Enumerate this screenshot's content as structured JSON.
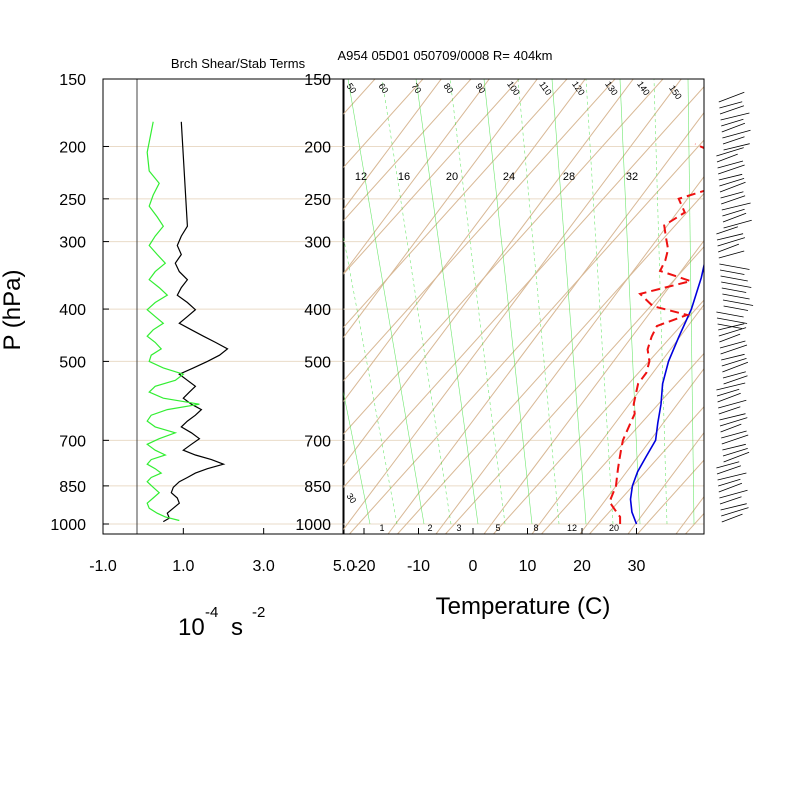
{
  "title": "A954 05D01 050709/0008 R= 404km",
  "colors": {
    "grid": "#d8b895",
    "pressure_line": "#eadbc8",
    "mixing_ratio": "#33dd33",
    "temperature": "#0000dd",
    "dewpoint": "#ee1111",
    "shear_term": "#000000",
    "stability_term": "#33ee33"
  },
  "chart_data": [
    {
      "type": "line",
      "title": "Brch Shear/Stab Terms",
      "xlabel": "10-4 s -2",
      "xlabel_base": "10",
      "xlabel_exp1": "-4",
      "xlabel_unit": "s",
      "xlabel_exp2": "-2",
      "ylabel": "P (hPa)",
      "y_scale": "log",
      "ylim": [
        1000,
        150
      ],
      "xlim": [
        -1.0,
        5.0
      ],
      "x_tick_labels": [
        "-1.0",
        "1.0",
        "3.0",
        "5.0"
      ],
      "x_tick_values": [
        -1.0,
        1.0,
        3.0,
        5.0
      ],
      "y_ticks": [
        1000,
        850,
        700,
        500,
        400,
        300,
        250,
        200,
        150
      ],
      "series": [
        {
          "key": "shear",
          "x": [
            0.5,
            0.65,
            0.6,
            0.75,
            0.9,
            0.85,
            0.7,
            0.75,
            0.9,
            1.1,
            1.3,
            1.6,
            2.0,
            1.7,
            1.3,
            1.0,
            1.2,
            1.4,
            1.2,
            0.95,
            1.1,
            1.3,
            1.45,
            1.2,
            1.0,
            1.15,
            1.3,
            1.1,
            0.9,
            1.25,
            1.6,
            1.9,
            2.1,
            1.8,
            1.5,
            1.2,
            0.9,
            1.1,
            1.3,
            1.1,
            0.85,
            0.95,
            1.1,
            0.9,
            0.8,
            0.95,
            0.85,
            0.95,
            1.1,
            0.95
          ],
          "y": [
            990,
            975,
            955,
            935,
            915,
            895,
            875,
            855,
            835,
            820,
            805,
            790,
            775,
            760,
            745,
            730,
            712,
            695,
            678,
            661,
            645,
            629,
            614,
            600,
            585,
            570,
            556,
            542,
            528,
            514,
            500,
            487,
            474,
            461,
            449,
            437,
            425,
            413,
            401,
            389,
            377,
            365,
            353,
            341,
            329,
            317,
            305,
            293,
            281,
            180
          ]
        },
        {
          "key": "stability",
          "x": [
            0.9,
            0.55,
            0.35,
            0.15,
            0.1,
            0.25,
            0.4,
            0.25,
            0.1,
            0.2,
            0.45,
            0.3,
            0.1,
            0.2,
            0.55,
            0.3,
            0.1,
            0.4,
            0.8,
            0.3,
            0.1,
            0.2,
            0.6,
            1.4,
            0.5,
            0.15,
            0.3,
            0.8,
            1.0,
            0.5,
            0.15,
            0.2,
            0.45,
            0.3,
            0.1,
            0.25,
            0.5,
            0.3,
            0.1,
            0.3,
            0.6,
            0.4,
            0.15,
            0.3,
            0.55,
            0.35,
            0.15,
            0.3,
            0.5,
            0.35,
            0.15,
            0.25,
            0.4,
            0.15,
            0.1,
            0.25
          ],
          "y": [
            985,
            970,
            955,
            935,
            915,
            895,
            875,
            855,
            835,
            820,
            805,
            790,
            775,
            760,
            745,
            730,
            712,
            695,
            678,
            661,
            645,
            629,
            614,
            600,
            585,
            570,
            556,
            542,
            528,
            514,
            500,
            487,
            474,
            461,
            449,
            437,
            425,
            413,
            401,
            389,
            377,
            365,
            353,
            341,
            329,
            317,
            305,
            293,
            281,
            270,
            258,
            246,
            234,
            222,
            205,
            180
          ]
        }
      ]
    },
    {
      "type": "line",
      "title": "",
      "xlabel": "Temperature (C)",
      "ylabel": "",
      "y_scale": "log",
      "ylim": [
        1000,
        150
      ],
      "xlim": [
        -25,
        44
      ],
      "x_ticks": [
        -20,
        -10,
        0,
        10,
        20,
        30
      ],
      "y_ticks": [
        1000,
        850,
        700,
        500,
        400,
        300,
        250,
        200,
        150
      ],
      "mixing_ratio_labels_top": [
        12,
        16,
        20,
        24,
        28,
        32
      ],
      "mixing_ratio_labels_bottom": [
        1,
        2,
        3,
        5,
        8,
        12,
        20
      ],
      "dry_adiabat_labels": [
        30,
        50,
        60,
        70,
        80,
        90,
        100,
        110,
        120,
        130,
        140,
        150
      ],
      "series": [
        {
          "key": "temperature",
          "p": [
            1000,
            950,
            900,
            850,
            800,
            750,
            700,
            650,
            600,
            550,
            500,
            450,
            400,
            350,
            300,
            250,
            200,
            175
          ],
          "t": [
            30,
            27.5,
            25.5,
            24,
            23,
            22.5,
            22,
            20,
            18,
            15.5,
            13.5,
            12,
            10.5,
            8,
            4.5,
            0.5,
            -3,
            -4.5
          ]
        },
        {
          "key": "dewpoint",
          "p": [
            1000,
            970,
            940,
            910,
            880,
            850,
            820,
            790,
            760,
            730,
            700,
            675,
            650,
            625,
            600,
            575,
            550,
            525,
            500,
            475,
            450,
            430,
            410,
            395,
            375,
            355,
            340,
            325,
            310,
            295,
            280,
            265,
            250,
            235,
            220,
            205,
            198
          ],
          "t": [
            27,
            26,
            24,
            22,
            21.5,
            21,
            20,
            19,
            18,
            17,
            16,
            15.5,
            15,
            14.5,
            13,
            12,
            11,
            11,
            10,
            8,
            7,
            6.5,
            10.5,
            3,
            -1,
            6.5,
            -0.5,
            -1,
            -2,
            -4,
            -6,
            -4,
            -7,
            -0.5,
            -2,
            -7,
            -11.5
          ]
        }
      ]
    }
  ]
}
